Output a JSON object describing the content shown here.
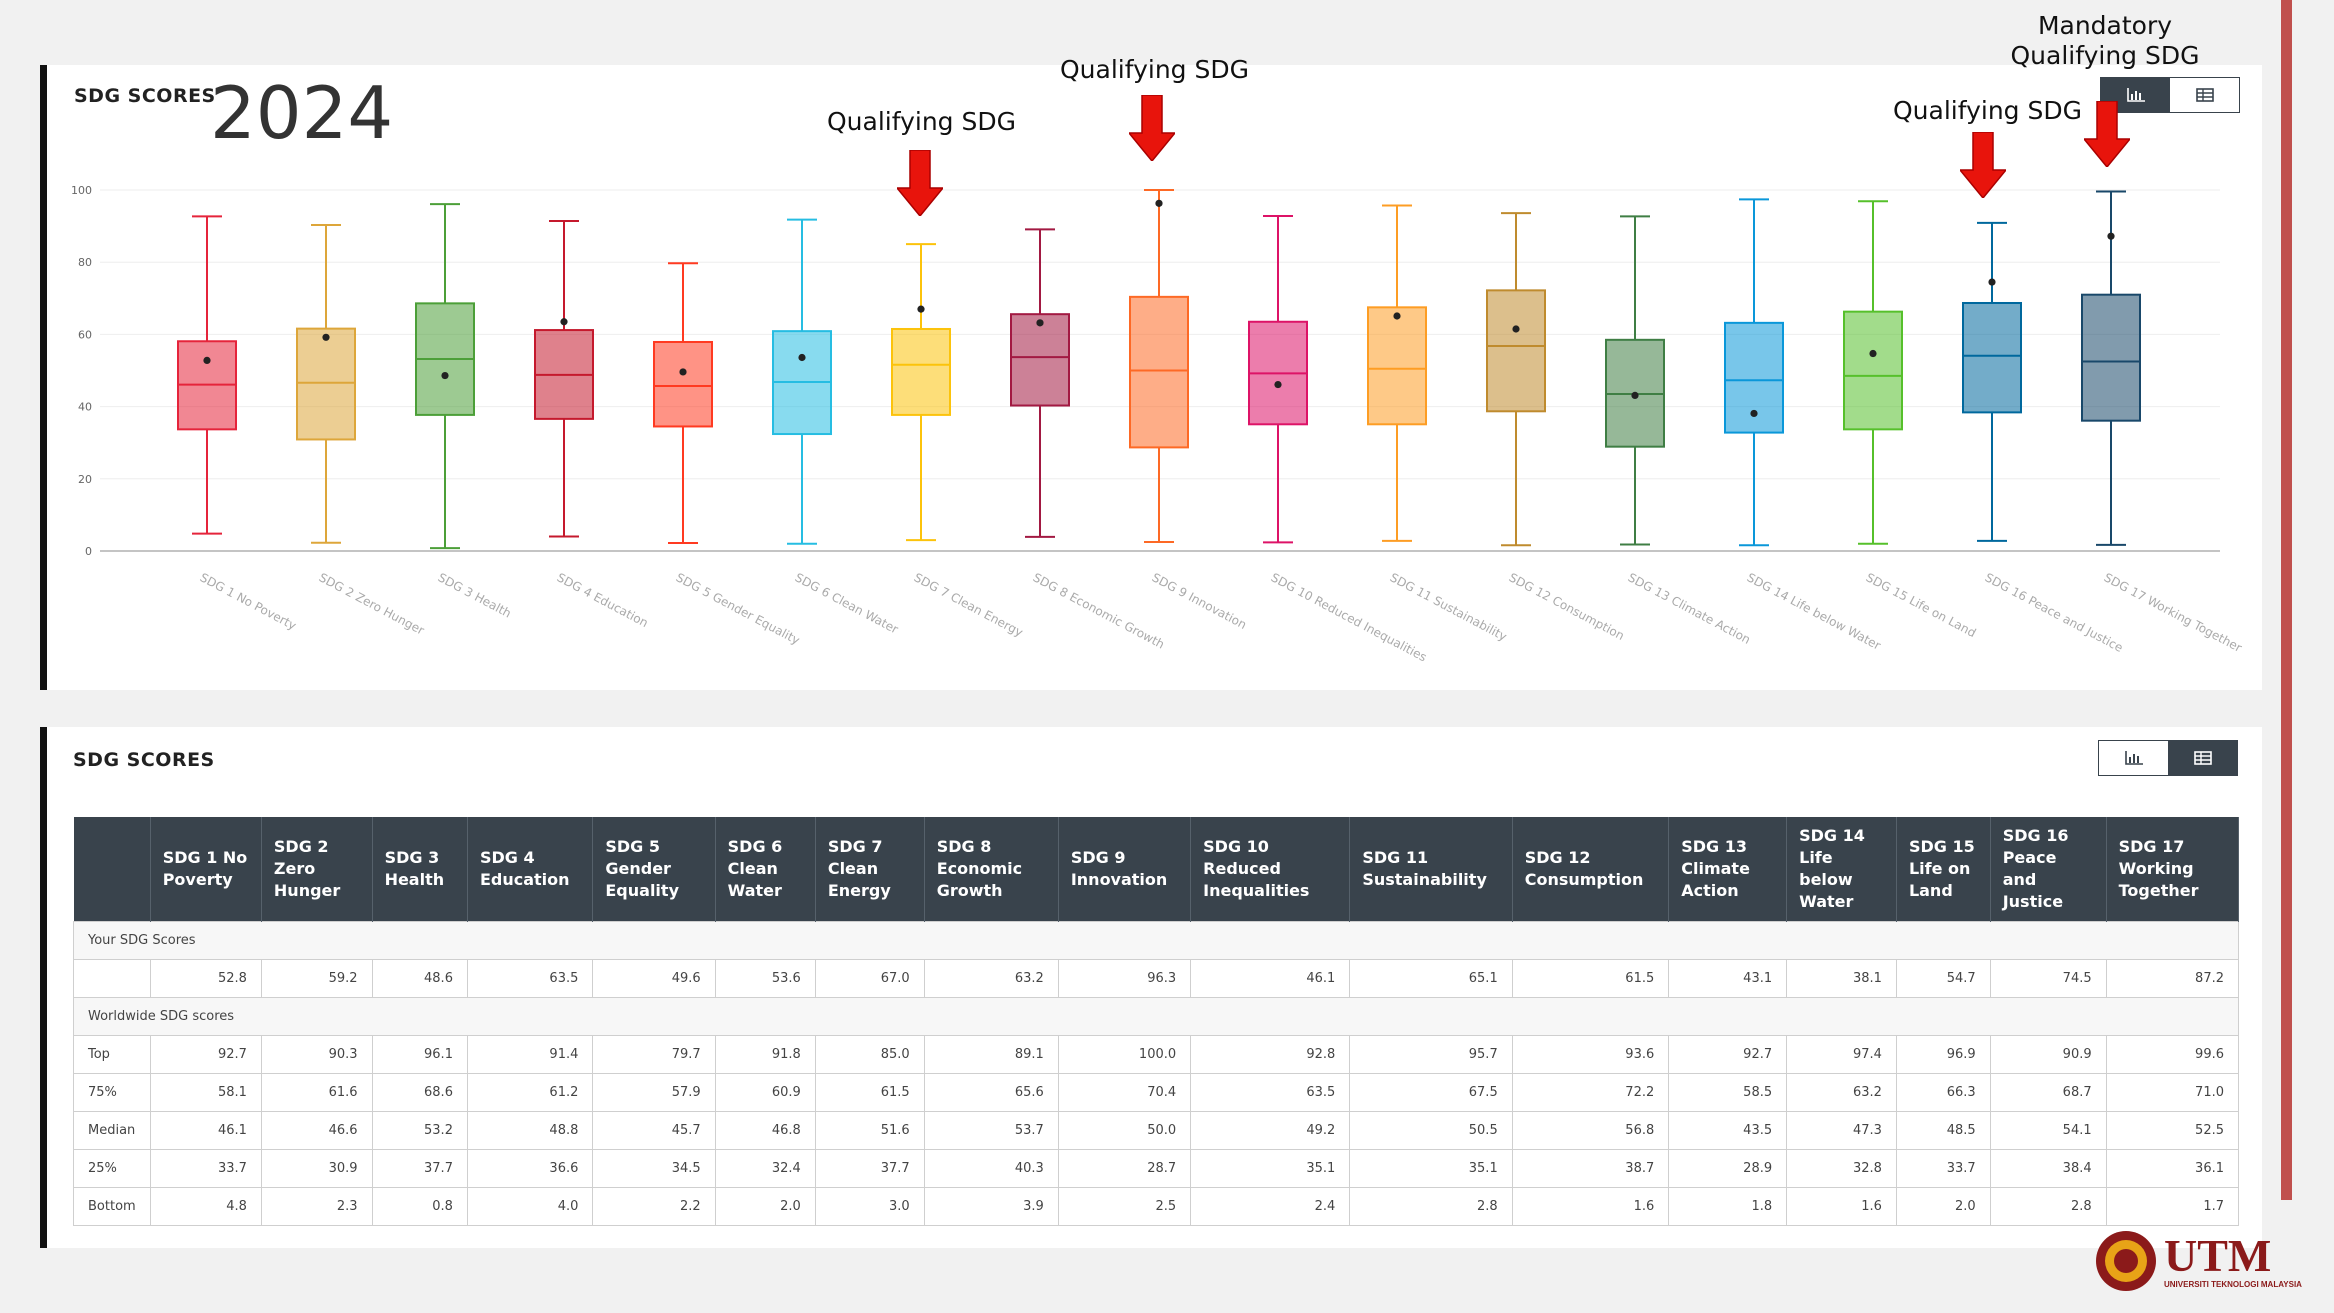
{
  "chart_panel": {
    "title": "SDG SCORES",
    "year": "2024",
    "annotations": [
      {
        "label": "Qualifying SDG",
        "target": "SDG 7 Clean Energy"
      },
      {
        "label": "Qualifying SDG",
        "target": "SDG 9 Innovation"
      },
      {
        "label": "Qualifying SDG",
        "target": "SDG 16 Peace and Justice"
      },
      {
        "label": "Mandatory\nQualifying SDG",
        "target": "SDG 17 Working Together"
      }
    ],
    "toggle": {
      "chart_icon": "bar-chart-icon",
      "table_icon": "table-icon",
      "active": "chart"
    }
  },
  "chart_data": {
    "type": "box",
    "title": "SDG SCORES",
    "ylim": [
      0,
      100
    ],
    "yticks": [
      0,
      20,
      40,
      60,
      80,
      100
    ],
    "grid": true,
    "categories": [
      "SDG 1 No Poverty",
      "SDG 2 Zero Hunger",
      "SDG 3 Health",
      "SDG 4 Education",
      "SDG 5 Gender Equality",
      "SDG 6 Clean Water",
      "SDG 7 Clean Energy",
      "SDG 8 Economic Growth",
      "SDG 9 Innovation",
      "SDG 10 Reduced Inequalities",
      "SDG 11 Sustainability",
      "SDG 12 Consumption",
      "SDG 13 Climate Action",
      "SDG 14 Life below Water",
      "SDG 15 Life on Land",
      "SDG 16 Peace and Justice",
      "SDG 17 Working Together"
    ],
    "colors": [
      "#e5243b",
      "#dda63a",
      "#4c9f38",
      "#c5192d",
      "#ff3a21",
      "#26bde2",
      "#fcc30b",
      "#a21942",
      "#fd6925",
      "#dd1367",
      "#fd9d24",
      "#bf8b2e",
      "#3f7e44",
      "#0a97d9",
      "#56c02b",
      "#00689d",
      "#19486a"
    ],
    "top": [
      92.7,
      90.3,
      96.1,
      91.4,
      79.7,
      91.8,
      85.0,
      89.1,
      100.0,
      92.8,
      95.7,
      93.6,
      92.7,
      97.4,
      96.9,
      90.9,
      99.6
    ],
    "q3": [
      58.1,
      61.6,
      68.6,
      61.2,
      57.9,
      60.9,
      61.5,
      65.6,
      70.4,
      63.5,
      67.5,
      72.2,
      58.5,
      63.2,
      66.3,
      68.7,
      71.0
    ],
    "median": [
      46.1,
      46.6,
      53.2,
      48.8,
      45.7,
      46.8,
      51.6,
      53.7,
      50.0,
      49.2,
      50.5,
      56.8,
      43.5,
      47.3,
      48.5,
      54.1,
      52.5
    ],
    "q1": [
      33.7,
      30.9,
      37.7,
      36.6,
      34.5,
      32.4,
      37.7,
      40.3,
      28.7,
      35.1,
      35.1,
      38.7,
      28.9,
      32.8,
      33.7,
      38.4,
      36.1
    ],
    "bottom": [
      4.8,
      2.3,
      0.8,
      4.0,
      2.2,
      2.0,
      3.0,
      3.9,
      2.5,
      2.4,
      2.8,
      1.6,
      1.8,
      1.6,
      2.0,
      2.8,
      1.7
    ],
    "your_score": [
      52.8,
      59.2,
      48.6,
      63.5,
      49.6,
      53.6,
      67.0,
      63.2,
      96.3,
      46.1,
      65.1,
      61.5,
      43.1,
      38.1,
      54.7,
      74.5,
      87.2
    ]
  },
  "table_panel": {
    "title": "SDG SCORES",
    "headers": [
      "SDG 1 No Poverty",
      "SDG 2 Zero Hunger",
      "SDG 3 Health",
      "SDG 4 Education",
      "SDG 5 Gender Equality",
      "SDG 6 Clean Water",
      "SDG 7 Clean Energy",
      "SDG 8 Economic Growth",
      "SDG 9 Innovation",
      "SDG 10 Reduced Inequalities",
      "SDG 11 Sustainability",
      "SDG 12 Consumption",
      "SDG 13 Climate Action",
      "SDG 14 Life below Water",
      "SDG 15 Life on Land",
      "SDG 16 Peace and Justice",
      "SDG 17 Working Together"
    ],
    "group_your": "Your SDG Scores",
    "your_row": {
      "label": "",
      "values": [
        "52.8",
        "59.2",
        "48.6",
        "63.5",
        "49.6",
        "53.6",
        "67.0",
        "63.2",
        "96.3",
        "46.1",
        "65.1",
        "61.5",
        "43.1",
        "38.1",
        "54.7",
        "74.5",
        "87.2"
      ]
    },
    "group_world": "Worldwide SDG scores",
    "world_rows": [
      {
        "label": "Top",
        "values": [
          "92.7",
          "90.3",
          "96.1",
          "91.4",
          "79.7",
          "91.8",
          "85.0",
          "89.1",
          "100.0",
          "92.8",
          "95.7",
          "93.6",
          "92.7",
          "97.4",
          "96.9",
          "90.9",
          "99.6"
        ]
      },
      {
        "label": "75%",
        "values": [
          "58.1",
          "61.6",
          "68.6",
          "61.2",
          "57.9",
          "60.9",
          "61.5",
          "65.6",
          "70.4",
          "63.5",
          "67.5",
          "72.2",
          "58.5",
          "63.2",
          "66.3",
          "68.7",
          "71.0"
        ]
      },
      {
        "label": "Median",
        "values": [
          "46.1",
          "46.6",
          "53.2",
          "48.8",
          "45.7",
          "46.8",
          "51.6",
          "53.7",
          "50.0",
          "49.2",
          "50.5",
          "56.8",
          "43.5",
          "47.3",
          "48.5",
          "54.1",
          "52.5"
        ]
      },
      {
        "label": "25%",
        "values": [
          "33.7",
          "30.9",
          "37.7",
          "36.6",
          "34.5",
          "32.4",
          "37.7",
          "40.3",
          "28.7",
          "35.1",
          "35.1",
          "38.7",
          "28.9",
          "32.8",
          "33.7",
          "38.4",
          "36.1"
        ]
      },
      {
        "label": "Bottom",
        "values": [
          "4.8",
          "2.3",
          "0.8",
          "4.0",
          "2.2",
          "2.0",
          "3.0",
          "3.9",
          "2.5",
          "2.4",
          "2.8",
          "1.6",
          "1.8",
          "1.6",
          "2.0",
          "2.8",
          "1.7"
        ]
      }
    ],
    "toggle": {
      "chart_icon": "bar-chart-icon",
      "table_icon": "table-icon",
      "active": "table"
    }
  },
  "logo": {
    "text": "UTM",
    "subtitle": "UNIVERSITI TEKNOLOGI MALAYSIA",
    "color": "#8b1a1a"
  }
}
